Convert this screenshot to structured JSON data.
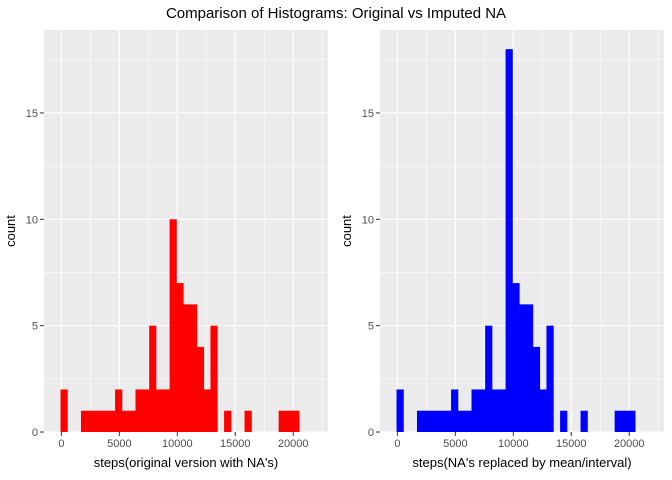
{
  "title": "Comparison of Histograms: Original vs Imputed NA",
  "chart_data": [
    {
      "type": "bar",
      "subtype": "histogram",
      "color": "#ff0000",
      "xlabel": "steps(original version with NA's)",
      "ylabel": "count",
      "xlim": [
        -1500,
        23000
      ],
      "ylim": [
        0,
        18.9
      ],
      "xticks": [
        0,
        5000,
        10000,
        15000,
        20000
      ],
      "xtick_labels": [
        "0",
        "5000",
        "10000",
        "15000",
        "20000"
      ],
      "yticks": [
        0,
        5,
        10,
        15
      ],
      "ytick_labels": [
        "0",
        "5",
        "10",
        "15"
      ],
      "grid": true,
      "bins": [
        {
          "x0": -74,
          "x1": 514,
          "count": 2
        },
        {
          "x0": 514,
          "x1": 1102,
          "count": 0
        },
        {
          "x0": 1102,
          "x1": 1690,
          "count": 0
        },
        {
          "x0": 1690,
          "x1": 2278,
          "count": 1
        },
        {
          "x0": 2278,
          "x1": 2866,
          "count": 1
        },
        {
          "x0": 2866,
          "x1": 3454,
          "count": 1
        },
        {
          "x0": 3454,
          "x1": 4042,
          "count": 1
        },
        {
          "x0": 4042,
          "x1": 4630,
          "count": 1
        },
        {
          "x0": 4630,
          "x1": 5218,
          "count": 2
        },
        {
          "x0": 5218,
          "x1": 5806,
          "count": 1
        },
        {
          "x0": 5806,
          "x1": 6394,
          "count": 1
        },
        {
          "x0": 6394,
          "x1": 6982,
          "count": 2
        },
        {
          "x0": 6982,
          "x1": 7570,
          "count": 2
        },
        {
          "x0": 7570,
          "x1": 8158,
          "count": 5
        },
        {
          "x0": 8158,
          "x1": 8746,
          "count": 2
        },
        {
          "x0": 8746,
          "x1": 9334,
          "count": 2
        },
        {
          "x0": 9334,
          "x1": 9922,
          "count": 10
        },
        {
          "x0": 9922,
          "x1": 10510,
          "count": 7
        },
        {
          "x0": 10510,
          "x1": 11098,
          "count": 6
        },
        {
          "x0": 11098,
          "x1": 11686,
          "count": 6
        },
        {
          "x0": 11686,
          "x1": 12274,
          "count": 4
        },
        {
          "x0": 12274,
          "x1": 12862,
          "count": 2
        },
        {
          "x0": 12862,
          "x1": 13450,
          "count": 5
        },
        {
          "x0": 13450,
          "x1": 14038,
          "count": 0
        },
        {
          "x0": 14038,
          "x1": 14626,
          "count": 1
        },
        {
          "x0": 14626,
          "x1": 15214,
          "count": 0
        },
        {
          "x0": 15214,
          "x1": 15802,
          "count": 0
        },
        {
          "x0": 15802,
          "x1": 16390,
          "count": 1
        },
        {
          "x0": 16390,
          "x1": 16978,
          "count": 0
        },
        {
          "x0": 16978,
          "x1": 17566,
          "count": 0
        },
        {
          "x0": 17566,
          "x1": 18154,
          "count": 0
        },
        {
          "x0": 18154,
          "x1": 18742,
          "count": 0
        },
        {
          "x0": 18742,
          "x1": 19330,
          "count": 1
        },
        {
          "x0": 19330,
          "x1": 19918,
          "count": 1
        },
        {
          "x0": 19918,
          "x1": 20506,
          "count": 1
        }
      ]
    },
    {
      "type": "bar",
      "subtype": "histogram",
      "color": "#0000ff",
      "xlabel": "steps(NA's replaced by mean/interval)",
      "ylabel": "count",
      "xlim": [
        -1500,
        23000
      ],
      "ylim": [
        0,
        18.9
      ],
      "xticks": [
        0,
        5000,
        10000,
        15000,
        20000
      ],
      "xtick_labels": [
        "0",
        "5000",
        "10000",
        "15000",
        "20000"
      ],
      "yticks": [
        0,
        5,
        10,
        15
      ],
      "ytick_labels": [
        "0",
        "5",
        "10",
        "15"
      ],
      "grid": true,
      "bins": [
        {
          "x0": -74,
          "x1": 514,
          "count": 2
        },
        {
          "x0": 514,
          "x1": 1102,
          "count": 0
        },
        {
          "x0": 1102,
          "x1": 1690,
          "count": 0
        },
        {
          "x0": 1690,
          "x1": 2278,
          "count": 1
        },
        {
          "x0": 2278,
          "x1": 2866,
          "count": 1
        },
        {
          "x0": 2866,
          "x1": 3454,
          "count": 1
        },
        {
          "x0": 3454,
          "x1": 4042,
          "count": 1
        },
        {
          "x0": 4042,
          "x1": 4630,
          "count": 1
        },
        {
          "x0": 4630,
          "x1": 5218,
          "count": 2
        },
        {
          "x0": 5218,
          "x1": 5806,
          "count": 1
        },
        {
          "x0": 5806,
          "x1": 6394,
          "count": 1
        },
        {
          "x0": 6394,
          "x1": 6982,
          "count": 2
        },
        {
          "x0": 6982,
          "x1": 7570,
          "count": 2
        },
        {
          "x0": 7570,
          "x1": 8158,
          "count": 5
        },
        {
          "x0": 8158,
          "x1": 8746,
          "count": 2
        },
        {
          "x0": 8746,
          "x1": 9334,
          "count": 2
        },
        {
          "x0": 9334,
          "x1": 9922,
          "count": 18
        },
        {
          "x0": 9922,
          "x1": 10510,
          "count": 7
        },
        {
          "x0": 10510,
          "x1": 11098,
          "count": 6
        },
        {
          "x0": 11098,
          "x1": 11686,
          "count": 6
        },
        {
          "x0": 11686,
          "x1": 12274,
          "count": 4
        },
        {
          "x0": 12274,
          "x1": 12862,
          "count": 2
        },
        {
          "x0": 12862,
          "x1": 13450,
          "count": 5
        },
        {
          "x0": 13450,
          "x1": 14038,
          "count": 0
        },
        {
          "x0": 14038,
          "x1": 14626,
          "count": 1
        },
        {
          "x0": 14626,
          "x1": 15214,
          "count": 0
        },
        {
          "x0": 15214,
          "x1": 15802,
          "count": 0
        },
        {
          "x0": 15802,
          "x1": 16390,
          "count": 1
        },
        {
          "x0": 16390,
          "x1": 16978,
          "count": 0
        },
        {
          "x0": 16978,
          "x1": 17566,
          "count": 0
        },
        {
          "x0": 17566,
          "x1": 18154,
          "count": 0
        },
        {
          "x0": 18154,
          "x1": 18742,
          "count": 0
        },
        {
          "x0": 18742,
          "x1": 19330,
          "count": 1
        },
        {
          "x0": 19330,
          "x1": 19918,
          "count": 1
        },
        {
          "x0": 19918,
          "x1": 20506,
          "count": 1
        }
      ]
    }
  ]
}
